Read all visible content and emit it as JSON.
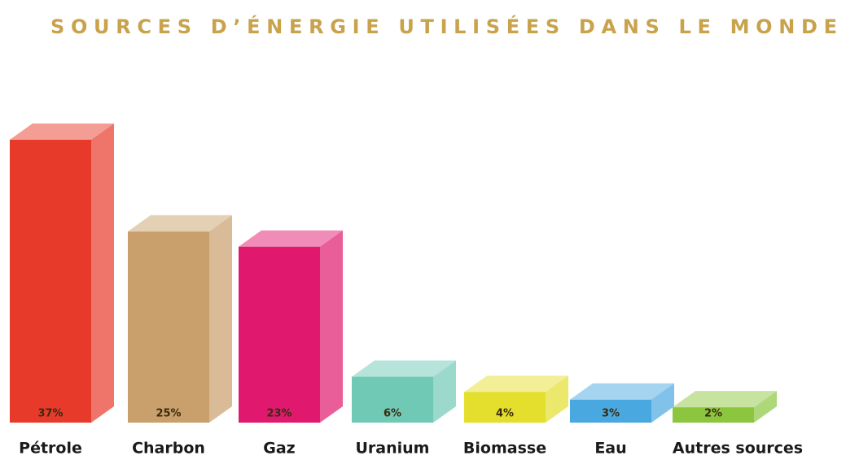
{
  "chart_data": {
    "type": "bar3d",
    "title": "SOURCES D’ÉNERGIE UTILISÉES DANS LE MONDE",
    "categories": [
      "Pétrole",
      "Charbon",
      "Gaz",
      "Uranium",
      "Biomasse",
      "Eau",
      "Autres sources"
    ],
    "values": [
      37,
      25,
      23,
      6,
      4,
      3,
      2
    ],
    "value_labels": [
      "37%",
      "25%",
      "23%",
      "6%",
      "4%",
      "3%",
      "2%"
    ],
    "colors": [
      "#e83a2a",
      "#c9a06b",
      "#e0196e",
      "#6fc9b5",
      "#e4df2c",
      "#4aa8e0",
      "#8cc63f"
    ]
  }
}
